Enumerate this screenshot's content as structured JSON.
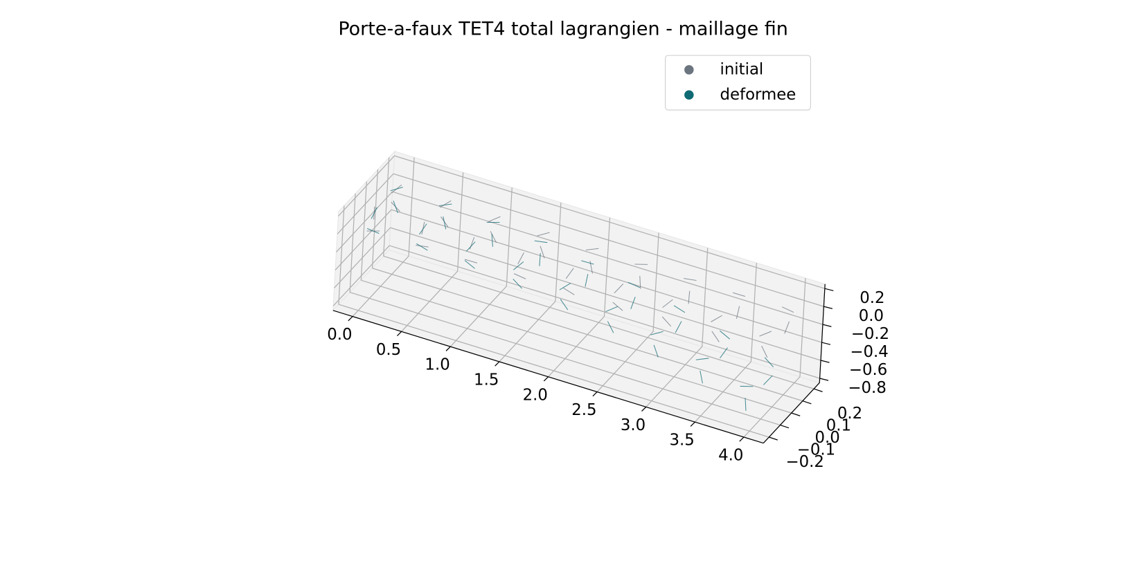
{
  "chart_data": {
    "type": "scatter3d",
    "title": "Porte-a-faux TET4 total lagrangien - maillage fin",
    "xlim": [
      -0.2,
      4.2
    ],
    "ylim": [
      -0.25,
      0.25
    ],
    "zlim": [
      -0.85,
      0.25
    ],
    "xticks": [
      {
        "value": 0,
        "label": "0.0"
      },
      0.5,
      {
        "value": 1,
        "label": "1.0"
      },
      1.5,
      {
        "value": 2,
        "label": "2.0"
      },
      2.5,
      {
        "value": 3,
        "label": "3.0"
      },
      3.5,
      {
        "value": 4,
        "label": "4.0"
      }
    ],
    "yticks": [
      {
        "value": -0.2,
        "label": "−0.2"
      },
      {
        "value": -0.1,
        "label": "−0.1"
      },
      {
        "value": 0,
        "label": "0.0"
      },
      0.1,
      0.2
    ],
    "zticks": [
      {
        "value": -0.8,
        "label": "−0.8"
      },
      {
        "value": -0.6,
        "label": "−0.6"
      },
      {
        "value": -0.4,
        "label": "−0.4"
      },
      {
        "value": -0.2,
        "label": "−0.2"
      },
      {
        "value": 0,
        "label": "0.0"
      },
      0.2
    ],
    "grid": true,
    "legend": "upper right",
    "series": [
      {
        "name": "initial",
        "color": "#6b7580",
        "x": [
          0,
          0,
          0,
          0,
          0.5,
          0.5,
          0.5,
          0.5,
          1,
          1,
          1,
          1,
          1.5,
          1.5,
          1.5,
          1.5,
          2,
          2,
          2,
          2,
          2.5,
          2.5,
          2.5,
          2.5,
          3,
          3,
          3,
          3,
          3.5,
          3.5,
          3.5,
          3.5,
          4,
          4,
          4,
          4
        ],
        "y": [
          -0.1,
          0.1,
          -0.1,
          0.1,
          -0.1,
          0.1,
          -0.1,
          0.1,
          -0.1,
          0.1,
          -0.1,
          0.1,
          -0.1,
          0.1,
          -0.1,
          0.1,
          -0.1,
          0.1,
          -0.1,
          0.1,
          -0.1,
          0.1,
          -0.1,
          0.1,
          -0.1,
          0.1,
          -0.1,
          0.1,
          -0.1,
          0.1,
          -0.1,
          0.1,
          -0.1,
          0.1,
          -0.1,
          0.1
        ],
        "z": [
          -0.1,
          -0.1,
          0.1,
          0.1,
          -0.1,
          -0.1,
          0.1,
          0.1,
          -0.1,
          -0.1,
          0.1,
          0.1,
          -0.1,
          -0.1,
          0.1,
          0.1,
          -0.1,
          -0.1,
          0.1,
          0.1,
          -0.1,
          -0.1,
          0.1,
          0.1,
          -0.1,
          -0.1,
          0.1,
          0.1,
          -0.1,
          -0.1,
          0.1,
          0.1,
          -0.1,
          -0.1,
          0.1,
          0.1
        ]
      },
      {
        "name": "deformee",
        "color": "#0f6a73",
        "x": [
          0,
          0,
          0,
          0,
          0.5,
          0.5,
          0.5,
          0.5,
          0.99,
          0.99,
          0.99,
          0.99,
          1.48,
          1.48,
          1.48,
          1.48,
          1.96,
          1.96,
          1.96,
          1.96,
          2.44,
          2.44,
          2.44,
          2.44,
          2.91,
          2.91,
          2.91,
          2.91,
          3.38,
          3.38,
          3.38,
          3.38,
          3.84,
          3.84,
          3.84,
          3.84
        ],
        "y": [
          -0.1,
          0.1,
          -0.1,
          0.1,
          -0.1,
          0.1,
          -0.1,
          0.1,
          -0.1,
          0.1,
          -0.1,
          0.1,
          -0.1,
          0.1,
          -0.1,
          0.1,
          -0.1,
          0.1,
          -0.1,
          0.1,
          -0.1,
          0.1,
          -0.1,
          0.1,
          -0.1,
          0.1,
          -0.1,
          0.1,
          -0.1,
          0.1,
          -0.1,
          0.1,
          -0.1,
          0.1,
          -0.1,
          0.1
        ],
        "z": [
          -0.1,
          -0.1,
          0.1,
          0.1,
          -0.11,
          -0.11,
          0.09,
          0.09,
          -0.14,
          -0.14,
          0.06,
          0.06,
          -0.19,
          -0.19,
          0.01,
          0.01,
          -0.26,
          -0.26,
          -0.06,
          -0.06,
          -0.35,
          -0.35,
          -0.15,
          -0.15,
          -0.46,
          -0.46,
          -0.26,
          -0.26,
          -0.59,
          -0.59,
          -0.39,
          -0.39,
          -0.74,
          -0.74,
          -0.54,
          -0.54
        ]
      }
    ]
  }
}
